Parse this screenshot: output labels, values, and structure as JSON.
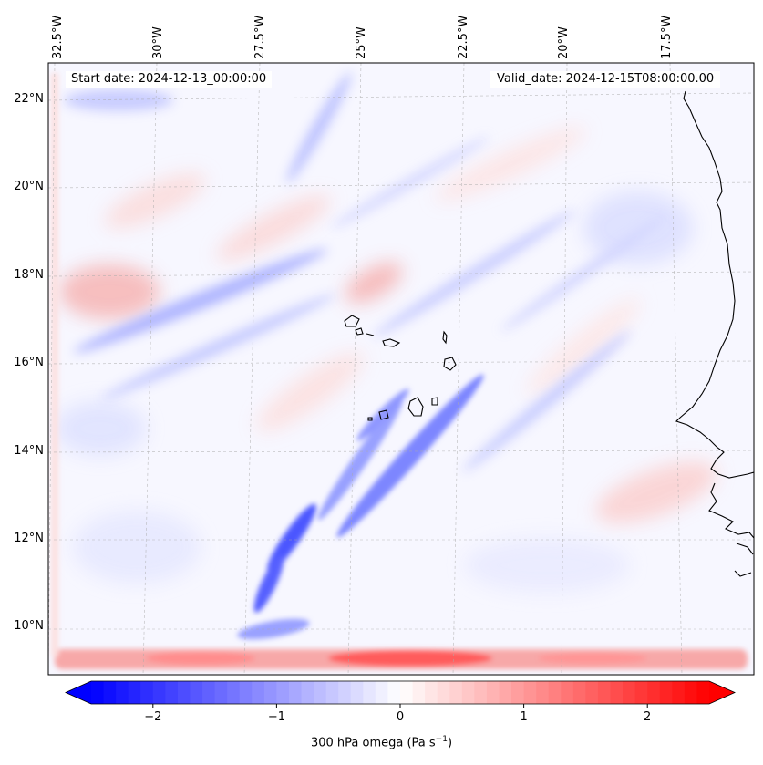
{
  "map": {
    "start_label": "Start date: 2024-12-13_00:00:00",
    "valid_label": "Valid_date: 2024-12-15T08:00:00.00",
    "lon_labels": [
      "32.5°W",
      "30°W",
      "27.5°W",
      "25°W",
      "22.5°W",
      "20°W",
      "17.5°W"
    ],
    "lat_labels": [
      "22°N",
      "20°N",
      "18°N",
      "16°N",
      "14°N",
      "12°N",
      "10°N"
    ],
    "gridlines": true,
    "coastline_color": "#000000"
  },
  "colorbar": {
    "ticks": [
      "−2",
      "−1",
      "0",
      "1",
      "2"
    ],
    "tick_values": [
      -2,
      -1,
      0,
      1,
      2
    ],
    "range": [
      -2.5,
      2.5
    ],
    "extend": "both",
    "colormap": "bwr",
    "label_prefix": "300 hPa omega (Pa s",
    "label_exp": "−1",
    "label_suffix": ")"
  },
  "colors": {
    "negative": "#0000ff",
    "neutral": "#ffffff",
    "positive": "#ff0000"
  }
}
